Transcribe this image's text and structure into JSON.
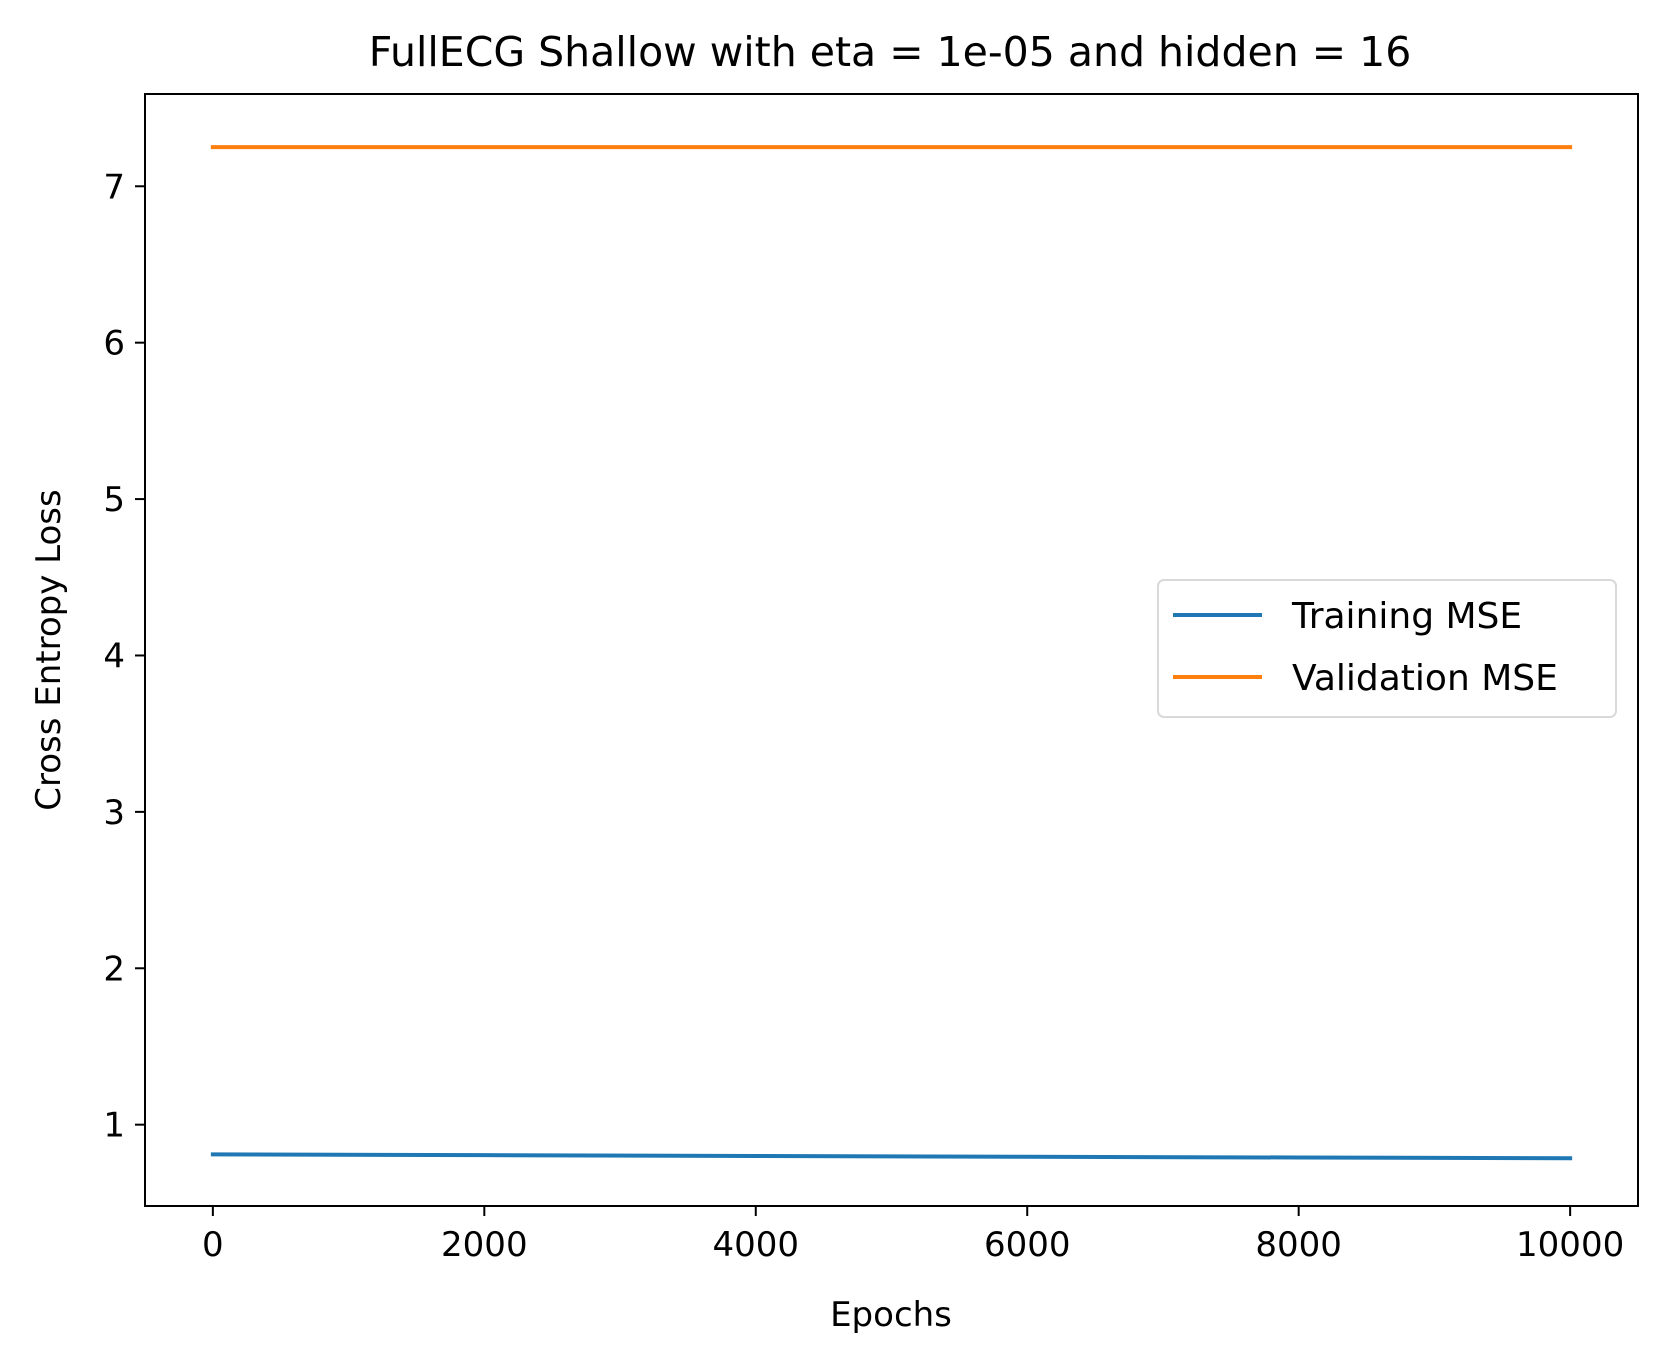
{
  "chart_data": {
    "type": "line",
    "title": "FullECG Shallow with eta = 1e-05 and hidden = 16",
    "xlabel": "Epochs",
    "ylabel": "Cross Entropy Loss",
    "xlim": [
      -500,
      10500
    ],
    "ylim": [
      0.48,
      7.59
    ],
    "xticks": [
      0,
      2000,
      4000,
      6000,
      8000,
      10000
    ],
    "xtick_labels": [
      "0",
      "2000",
      "4000",
      "6000",
      "8000",
      "10000"
    ],
    "yticks": [
      1,
      2,
      3,
      4,
      5,
      6,
      7
    ],
    "ytick_labels": [
      "1",
      "2",
      "3",
      "4",
      "5",
      "6",
      "7"
    ],
    "grid": false,
    "legend_position": "center-right",
    "series": [
      {
        "name": "Training MSE",
        "color": "#1f77b4",
        "x": [
          0,
          2000,
          4000,
          6000,
          8000,
          10000
        ],
        "y": [
          0.81,
          0.805,
          0.8,
          0.795,
          0.79,
          0.785
        ]
      },
      {
        "name": "Validation MSE",
        "color": "#ff7f0e",
        "x": [
          0,
          2000,
          4000,
          6000,
          8000,
          10000
        ],
        "y": [
          7.25,
          7.25,
          7.25,
          7.25,
          7.25,
          7.25
        ]
      }
    ]
  }
}
